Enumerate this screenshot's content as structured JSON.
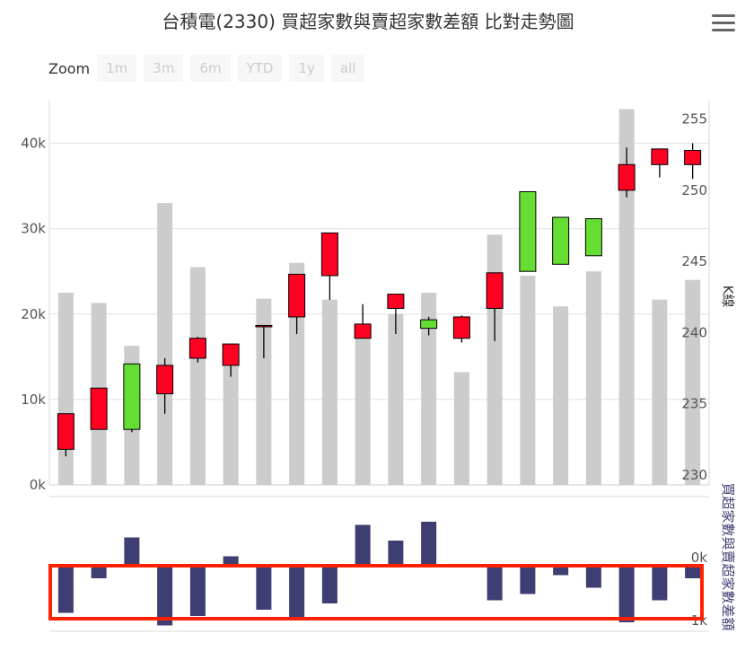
{
  "title": "台積電(2330) 買超家數與賣超家數差額 比對走勢圖",
  "zoom": {
    "label": "Zoom",
    "buttons": [
      "1m",
      "3m",
      "6m",
      "YTD",
      "1y",
      "all"
    ]
  },
  "colors": {
    "volume": "#cccccc",
    "up": "#ff0022",
    "down": "#66dd33",
    "diff": "#3e3e73",
    "grid": "#e0e0e0",
    "highlight": "#ff2200"
  },
  "chart_data": {
    "type": "candlestick-with-bars",
    "upper": {
      "left_axis": {
        "ticks": [
          "0k",
          "10k",
          "20k",
          "30k",
          "40k"
        ],
        "range": [
          0,
          45000
        ]
      },
      "right_axis": {
        "title": "K線",
        "ticks": [
          "230",
          "235",
          "240",
          "245",
          "250",
          "255"
        ],
        "range": [
          230,
          257
        ]
      },
      "volume": [
        22500,
        21300,
        16300,
        33000,
        25500,
        14500,
        21800,
        26000,
        21700,
        17700,
        20000,
        22500,
        13200,
        29300,
        24500,
        20900,
        25000,
        44000,
        21700,
        24000
      ],
      "candles": [
        {
          "o": 232.5,
          "h": 234.8,
          "l": 232.0,
          "c": 235.0
        },
        {
          "o": 233.9,
          "h": 236.1,
          "l": 233.9,
          "c": 236.8
        },
        {
          "o": 238.5,
          "h": 238.5,
          "l": 233.7,
          "c": 233.9
        },
        {
          "o": 236.4,
          "h": 238.9,
          "l": 235.0,
          "c": 238.4
        },
        {
          "o": 238.9,
          "h": 240.4,
          "l": 238.6,
          "c": 240.3
        },
        {
          "o": 238.4,
          "h": 239.9,
          "l": 237.6,
          "c": 239.9
        },
        {
          "o": 241.2,
          "h": 241.2,
          "l": 238.9,
          "c": 241.2
        },
        {
          "o": 241.8,
          "h": 244.8,
          "l": 240.6,
          "c": 244.8
        },
        {
          "o": 244.7,
          "h": 247.7,
          "l": 243.0,
          "c": 247.7
        },
        {
          "o": 240.3,
          "h": 242.7,
          "l": 240.3,
          "c": 241.3
        },
        {
          "o": 242.4,
          "h": 243.4,
          "l": 240.6,
          "c": 243.4
        },
        {
          "o": 241.6,
          "h": 241.8,
          "l": 240.5,
          "c": 241.0
        },
        {
          "o": 240.3,
          "h": 241.9,
          "l": 240.0,
          "c": 241.8
        },
        {
          "o": 242.4,
          "h": 244.8,
          "l": 240.1,
          "c": 244.9
        },
        {
          "o": 250.6,
          "h": 250.6,
          "l": 245.1,
          "c": 245.0
        },
        {
          "o": 248.8,
          "h": 248.8,
          "l": 245.5,
          "c": 245.5
        },
        {
          "o": 248.7,
          "h": 248.7,
          "l": 246.1,
          "c": 246.1
        },
        {
          "o": 250.7,
          "h": 253.7,
          "l": 250.2,
          "c": 252.5
        },
        {
          "o": 252.5,
          "h": 253.5,
          "l": 251.6,
          "c": 253.6
        },
        {
          "o": 252.5,
          "h": 254.0,
          "l": 251.5,
          "c": 253.5
        }
      ]
    },
    "lower": {
      "right_axis": {
        "title": "買超家數與賣超家數差額",
        "ticks": [
          "0k",
          "1k"
        ]
      },
      "diff": [
        -750,
        -200,
        450,
        -950,
        -800,
        150,
        -700,
        -850,
        -600,
        650,
        400,
        700,
        0,
        -550,
        -450,
        -150,
        -350,
        -900,
        -550,
        -200
      ]
    }
  }
}
